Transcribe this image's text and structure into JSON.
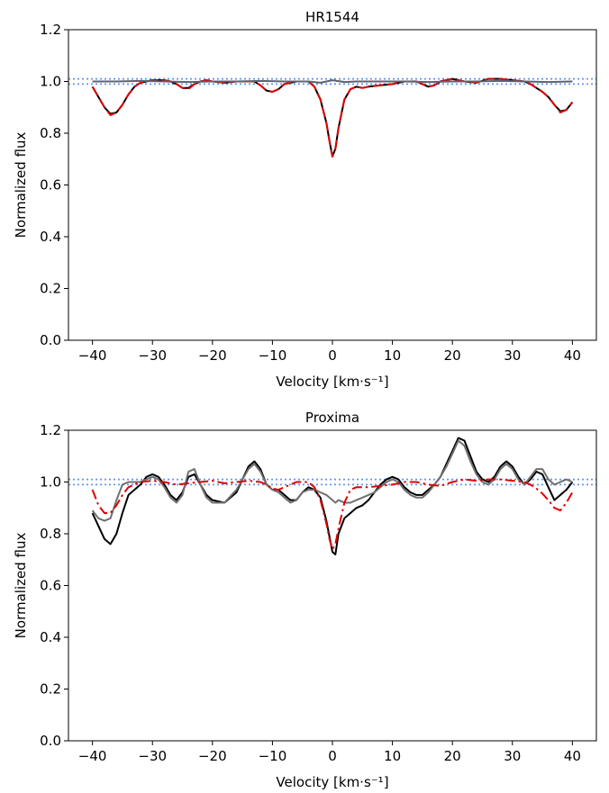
{
  "chart_data": [
    {
      "type": "line",
      "title": "HR1544",
      "xlabel": "Velocity [km·s⁻¹]",
      "ylabel": "Normalized flux",
      "xlim": [
        -44,
        44
      ],
      "ylim": [
        0.0,
        1.2
      ],
      "xticks": [
        -40,
        -30,
        -20,
        -10,
        0,
        10,
        20,
        30,
        40
      ],
      "xtick_labels": [
        "−40",
        "−30",
        "−20",
        "−10",
        "0",
        "10",
        "20",
        "30",
        "40"
      ],
      "yticks": [
        0.0,
        0.2,
        0.4,
        0.6,
        0.8,
        1.0,
        1.2
      ],
      "ytick_labels": [
        "0.0",
        "0.2",
        "0.4",
        "0.6",
        "0.8",
        "1.0",
        "1.2"
      ],
      "grid": false,
      "hlines": [
        {
          "y": 1.01,
          "color": "#6495ed",
          "style": "dotted"
        },
        {
          "y": 0.99,
          "color": "#6495ed",
          "style": "dotted"
        }
      ],
      "series": [
        {
          "color": "#000000",
          "style": "solid",
          "x": [
            -40,
            -39,
            -38,
            -37,
            -36,
            -35,
            -34,
            -33,
            -32,
            -31,
            -30,
            -28,
            -27,
            -26,
            -25,
            -24,
            -23,
            -22,
            -21,
            -20,
            -18,
            -16,
            -15,
            -13,
            -12,
            -11,
            -10,
            -9,
            -8,
            -6,
            -4,
            -3,
            -2,
            -1,
            -0.5,
            0,
            0.5,
            1,
            2,
            3,
            4,
            5,
            6,
            8,
            10,
            12,
            14,
            15,
            16,
            17,
            18,
            20,
            22,
            24,
            26,
            28,
            30,
            32,
            33,
            34,
            35,
            36,
            37,
            38,
            39,
            40
          ],
          "y": [
            0.98,
            0.94,
            0.9,
            0.875,
            0.88,
            0.91,
            0.95,
            0.98,
            0.995,
            1.0,
            1.005,
            1.005,
            1.0,
            0.99,
            0.975,
            0.975,
            0.99,
            1.0,
            1.005,
            1.0,
            0.995,
            1.0,
            1.0,
            1.0,
            0.985,
            0.965,
            0.96,
            0.97,
            0.99,
            1.0,
            1.0,
            0.98,
            0.93,
            0.84,
            0.77,
            0.71,
            0.74,
            0.82,
            0.93,
            0.97,
            0.98,
            0.975,
            0.98,
            0.985,
            0.99,
            1.0,
            1.0,
            0.99,
            0.98,
            0.985,
            1.0,
            1.01,
            1.0,
            0.995,
            1.01,
            1.01,
            1.005,
            1.0,
            0.99,
            0.975,
            0.96,
            0.94,
            0.91,
            0.885,
            0.89,
            0.92
          ]
        },
        {
          "color": "#e00000",
          "style": "dashed",
          "x": [
            -40,
            -39,
            -38,
            -37,
            -36,
            -35,
            -34,
            -33,
            -32,
            -31,
            -30,
            -28,
            -27,
            -26,
            -25,
            -24,
            -23,
            -22,
            -21,
            -20,
            -18,
            -16,
            -15,
            -13,
            -12,
            -11,
            -10,
            -9,
            -8,
            -6,
            -4,
            -3,
            -2,
            -1,
            -0.5,
            0,
            0.5,
            1,
            2,
            3,
            4,
            5,
            6,
            8,
            10,
            12,
            14,
            15,
            16,
            17,
            18,
            20,
            22,
            24,
            26,
            28,
            30,
            32,
            33,
            34,
            35,
            36,
            37,
            38,
            39,
            40
          ],
          "y": [
            0.98,
            0.94,
            0.9,
            0.87,
            0.88,
            0.91,
            0.95,
            0.98,
            0.995,
            1.0,
            1.005,
            1.005,
            1.0,
            0.99,
            0.975,
            0.97,
            0.99,
            1.0,
            1.005,
            1.0,
            0.995,
            1.0,
            1.0,
            1.0,
            0.985,
            0.965,
            0.96,
            0.97,
            0.99,
            1.0,
            1.0,
            0.98,
            0.93,
            0.84,
            0.77,
            0.71,
            0.74,
            0.82,
            0.93,
            0.97,
            0.98,
            0.975,
            0.98,
            0.985,
            0.99,
            1.0,
            1.0,
            0.99,
            0.98,
            0.985,
            1.0,
            1.01,
            1.0,
            0.995,
            1.01,
            1.01,
            1.005,
            1.0,
            0.99,
            0.975,
            0.96,
            0.94,
            0.91,
            0.88,
            0.89,
            0.92
          ]
        },
        {
          "color": "#5a6470",
          "style": "solid",
          "x": [
            -40,
            -36,
            -32,
            -28,
            -24,
            -20,
            -16,
            -12,
            -8,
            -4,
            -2,
            0,
            2,
            4,
            8,
            12,
            16,
            20,
            24,
            28,
            32,
            36,
            40
          ],
          "y": [
            1.0,
            1.0,
            1.002,
            1.0,
            0.998,
            1.0,
            1.0,
            1.002,
            1.0,
            1.0,
            0.995,
            1.005,
            0.998,
            1.0,
            1.0,
            1.0,
            0.998,
            1.0,
            1.0,
            1.002,
            1.0,
            0.998,
            1.0
          ]
        }
      ]
    },
    {
      "type": "line",
      "title": "Proxima",
      "xlabel": "Velocity [km·s⁻¹]",
      "ylabel": "Normalized flux",
      "xlim": [
        -44,
        44
      ],
      "ylim": [
        0.0,
        1.2
      ],
      "xticks": [
        -40,
        -30,
        -20,
        -10,
        0,
        10,
        20,
        30,
        40
      ],
      "xtick_labels": [
        "−40",
        "−30",
        "−20",
        "−10",
        "0",
        "10",
        "20",
        "30",
        "40"
      ],
      "yticks": [
        0.0,
        0.2,
        0.4,
        0.6,
        0.8,
        1.0,
        1.2
      ],
      "ytick_labels": [
        "0.0",
        "0.2",
        "0.4",
        "0.6",
        "0.8",
        "1.0",
        "1.2"
      ],
      "grid": false,
      "hlines": [
        {
          "y": 1.01,
          "color": "#6495ed",
          "style": "dotted"
        },
        {
          "y": 0.99,
          "color": "#6495ed",
          "style": "dotted"
        }
      ],
      "series": [
        {
          "color": "#000000",
          "style": "solid",
          "x": [
            -40,
            -39,
            -38,
            -37,
            -36,
            -35,
            -34,
            -32,
            -31,
            -30,
            -29,
            -28,
            -27,
            -26,
            -25,
            -24,
            -23,
            -22,
            -21,
            -20,
            -18,
            -16,
            -15,
            -14,
            -13,
            -12,
            -11,
            -10,
            -9,
            -8,
            -7,
            -6,
            -5,
            -4,
            -3,
            -2,
            -1,
            0,
            0.5,
            1,
            2,
            3,
            4,
            5,
            6,
            7,
            8,
            9,
            10,
            11,
            12,
            13,
            14,
            15,
            16,
            17,
            18,
            19,
            20,
            21,
            22,
            23,
            24,
            25,
            26,
            27,
            28,
            29,
            30,
            31,
            32,
            33,
            34,
            35,
            36,
            37,
            38,
            39,
            40
          ],
          "y": [
            0.88,
            0.83,
            0.78,
            0.76,
            0.8,
            0.88,
            0.95,
            0.99,
            1.02,
            1.03,
            1.02,
            0.99,
            0.95,
            0.93,
            0.96,
            1.02,
            1.03,
            0.99,
            0.95,
            0.93,
            0.92,
            0.96,
            1.01,
            1.06,
            1.08,
            1.05,
            0.99,
            0.97,
            0.97,
            0.95,
            0.93,
            0.93,
            0.96,
            0.98,
            0.97,
            0.94,
            0.85,
            0.73,
            0.72,
            0.8,
            0.86,
            0.88,
            0.9,
            0.91,
            0.93,
            0.96,
            0.99,
            1.01,
            1.02,
            1.01,
            0.98,
            0.96,
            0.95,
            0.95,
            0.97,
            0.99,
            1.02,
            1.07,
            1.12,
            1.17,
            1.16,
            1.1,
            1.04,
            1.01,
            1.0,
            1.02,
            1.06,
            1.08,
            1.06,
            1.02,
            0.99,
            1.01,
            1.04,
            1.03,
            0.98,
            0.93,
            0.95,
            0.97,
            1.0
          ]
        },
        {
          "color": "#707070",
          "style": "solid",
          "x": [
            -40,
            -39,
            -38,
            -37,
            -36,
            -35,
            -34,
            -32,
            -31,
            -30,
            -29,
            -28,
            -27,
            -26,
            -25,
            -24,
            -23,
            -22,
            -21,
            -20,
            -18,
            -16,
            -15,
            -14,
            -13,
            -12,
            -11,
            -10,
            -9,
            -8,
            -7,
            -6,
            -5,
            -4,
            -3,
            -2,
            -1,
            0,
            0.5,
            1,
            2,
            3,
            4,
            5,
            6,
            7,
            8,
            9,
            10,
            11,
            12,
            13,
            14,
            15,
            16,
            17,
            18,
            19,
            20,
            21,
            22,
            23,
            24,
            25,
            26,
            27,
            28,
            29,
            30,
            31,
            32,
            33,
            34,
            35,
            36,
            37,
            38,
            39,
            40
          ],
          "y": [
            0.89,
            0.86,
            0.85,
            0.86,
            0.93,
            0.99,
            1.0,
            1.0,
            1.01,
            1.02,
            1.01,
            0.98,
            0.94,
            0.92,
            0.95,
            1.04,
            1.05,
            0.99,
            0.94,
            0.92,
            0.92,
            0.97,
            1.01,
            1.05,
            1.07,
            1.04,
            0.99,
            0.97,
            0.96,
            0.94,
            0.92,
            0.93,
            0.96,
            0.97,
            0.97,
            0.96,
            0.95,
            0.93,
            0.92,
            0.93,
            0.92,
            0.92,
            0.93,
            0.94,
            0.95,
            0.96,
            0.98,
            1.0,
            1.01,
            1.0,
            0.97,
            0.95,
            0.94,
            0.94,
            0.96,
            0.99,
            1.02,
            1.06,
            1.11,
            1.16,
            1.14,
            1.08,
            1.03,
            1.0,
            0.99,
            1.01,
            1.05,
            1.07,
            1.05,
            1.01,
            0.99,
            1.02,
            1.05,
            1.05,
            1.01,
            0.99,
            1.0,
            1.01,
            1.0
          ]
        },
        {
          "color": "#e00000",
          "style": "dashdot",
          "x": [
            -40,
            -39,
            -38,
            -37,
            -36,
            -35,
            -34,
            -32,
            -30,
            -28,
            -26,
            -24,
            -22,
            -20,
            -18,
            -16,
            -14,
            -12,
            -11,
            -10,
            -9,
            -8,
            -6,
            -4,
            -3,
            -2,
            -1,
            -0.5,
            0,
            0.5,
            1,
            2,
            3,
            4,
            6,
            8,
            10,
            12,
            14,
            16,
            18,
            20,
            22,
            24,
            26,
            28,
            30,
            32,
            33,
            34,
            35,
            36,
            37,
            38,
            39,
            40
          ],
          "y": [
            0.97,
            0.91,
            0.88,
            0.88,
            0.91,
            0.95,
            0.98,
            1.0,
            1.005,
            1.0,
            0.99,
            0.995,
            1.0,
            1.005,
            0.995,
            1.0,
            1.005,
            1.0,
            0.99,
            0.975,
            0.97,
            0.98,
            1.0,
            1.0,
            0.98,
            0.93,
            0.84,
            0.78,
            0.74,
            0.76,
            0.82,
            0.92,
            0.97,
            0.98,
            0.98,
            0.985,
            0.99,
            1.0,
            1.0,
            0.99,
            0.985,
            1.0,
            1.01,
            1.005,
            1.01,
            1.01,
            1.005,
            1.0,
            0.99,
            0.975,
            0.955,
            0.93,
            0.9,
            0.89,
            0.92,
            0.96
          ]
        }
      ]
    }
  ]
}
